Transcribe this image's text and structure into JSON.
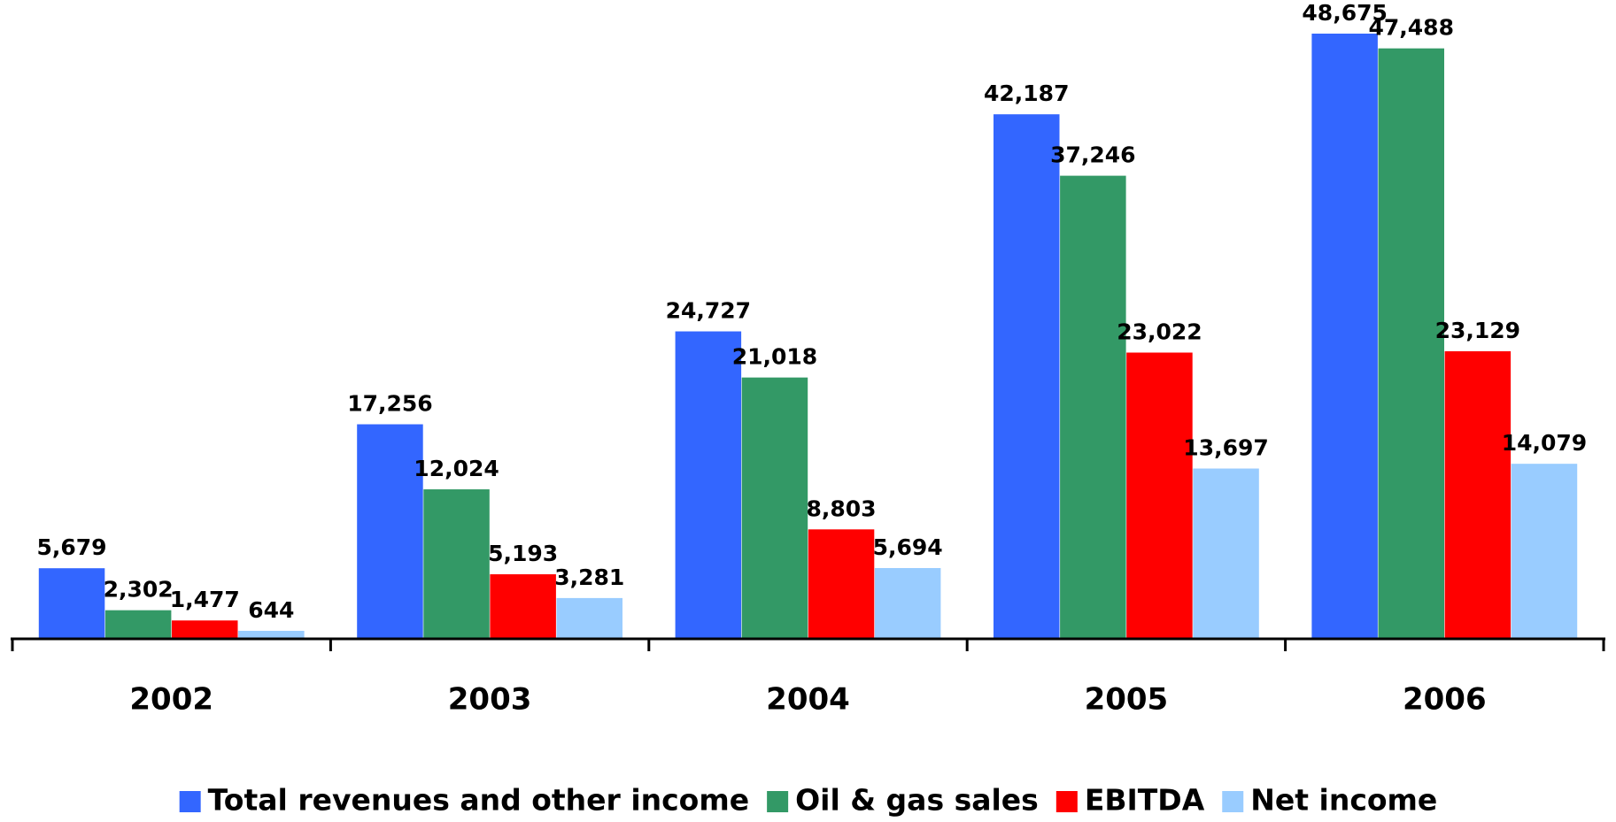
{
  "chart_data": {
    "type": "bar",
    "categories": [
      "2002",
      "2003",
      "2004",
      "2005",
      "2006"
    ],
    "series": [
      {
        "name": "Total revenues and other income",
        "color": "#3366ff",
        "values": [
          5679,
          17256,
          24727,
          42187,
          48675
        ],
        "value_labels": [
          "5,679",
          "17,256",
          "24,727",
          "42,187",
          "48,675"
        ]
      },
      {
        "name": "Oil & gas sales",
        "color": "#339966",
        "values": [
          2302,
          12024,
          21018,
          37246,
          47488
        ],
        "value_labels": [
          "2,302",
          "12,024",
          "21,018",
          "37,246",
          "47,488"
        ]
      },
      {
        "name": "EBITDA",
        "color": "#ff0000",
        "values": [
          1477,
          5193,
          8803,
          23022,
          23129
        ],
        "value_labels": [
          "1,477",
          "5,193",
          "8,803",
          "23,022",
          "23,129"
        ]
      },
      {
        "name": "Net income",
        "color": "#99ccff",
        "values": [
          644,
          3281,
          5694,
          13697,
          14079
        ],
        "value_labels": [
          "644",
          "3,281",
          "5,694",
          "13,697",
          "14,079"
        ]
      }
    ],
    "legend": "bottom"
  }
}
